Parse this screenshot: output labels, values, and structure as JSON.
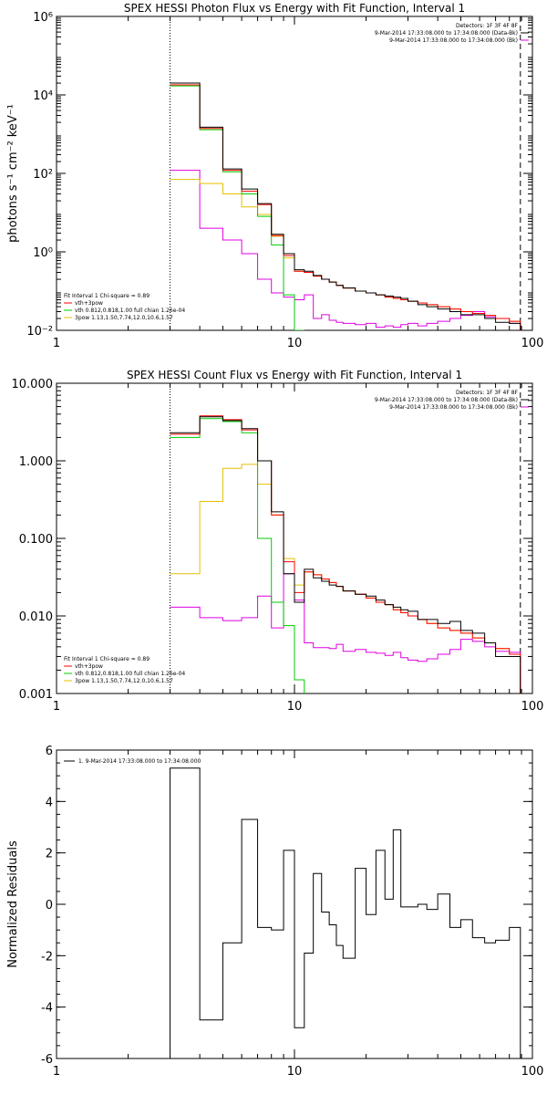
{
  "chart_data": [
    {
      "type": "line",
      "title": "SPEX HESSI Photon Flux vs Energy with Fit Function, Interval 1",
      "ylabel": "photons s⁻¹ cm⁻² keV⁻¹",
      "xscale": "log",
      "yscale": "log",
      "xlim": [
        1,
        100
      ],
      "ylim": [
        0.01,
        1000000
      ],
      "xticks": [
        {
          "v": 1,
          "label": "1"
        },
        {
          "v": 10,
          "label": "10"
        },
        {
          "v": 100,
          "label": "100"
        }
      ],
      "yticks": [
        {
          "v": 0.01,
          "label": "10⁻²"
        },
        {
          "v": 1,
          "label": "10⁰"
        },
        {
          "v": 100,
          "label": "10²"
        },
        {
          "v": 10000,
          "label": "10⁴"
        },
        {
          "v": 1000000,
          "label": "10⁶"
        }
      ],
      "vlines": [
        {
          "x": 3,
          "style": "dotted"
        },
        {
          "x": 89,
          "style": "dashed"
        }
      ],
      "legend_tr": [
        "Detectors: 1F 3F 4F 8F",
        "9-Mar-2014 17:33:08.000 to 17:34:08.000 (Data-Bk)",
        "9-Mar-2014 17:33:08.000 to 17:34:08.000 (Bk)"
      ],
      "legend_bl": {
        "title": "Fit Interval 1   Chi-square = 0.89",
        "entries": [
          "vth+3pow",
          "vth 0.812,0.818,1.00  full chian 1.26e-04",
          "3pow 1.13,1.50,7.74,12.0,10.6,1.57"
        ]
      },
      "edges": [
        3,
        4,
        5,
        6,
        7,
        8,
        9,
        10,
        11,
        12,
        13,
        14,
        15,
        16,
        18,
        20,
        22,
        24,
        26,
        28,
        30,
        33,
        36,
        40,
        45,
        50,
        56,
        63,
        70,
        80,
        89
      ],
      "series": [
        {
          "name": "Data-Bk",
          "color": "#000000",
          "values": [
            20000,
            1500,
            130,
            40,
            17,
            2.8,
            0.9,
            0.35,
            0.32,
            0.25,
            0.2,
            0.17,
            0.14,
            0.12,
            0.1,
            0.09,
            0.08,
            0.075,
            0.07,
            0.065,
            0.055,
            0.045,
            0.04,
            0.035,
            0.03,
            0.025,
            0.025,
            0.02,
            0.016,
            0.015
          ]
        },
        {
          "name": "vth+3pow",
          "color": "#ff0000",
          "values": [
            18000,
            1400,
            120,
            35,
            16,
            2.6,
            0.8,
            0.32,
            0.3,
            0.24,
            0.2,
            0.17,
            0.14,
            0.12,
            0.1,
            0.09,
            0.08,
            0.07,
            0.065,
            0.06,
            0.055,
            0.05,
            0.045,
            0.04,
            0.035,
            0.03,
            0.027,
            0.024,
            0.02,
            0.017
          ]
        },
        {
          "name": "vth",
          "color": "#00cc00",
          "values": [
            17000,
            1300,
            110,
            30,
            8,
            1.5,
            0.08,
            0.01
          ]
        },
        {
          "name": "3pow",
          "color": "#e6c000",
          "values": [
            70,
            55,
            30,
            14,
            9,
            2.5,
            0.7,
            0.32,
            0.3,
            0.24,
            0.2,
            0.17,
            0.14,
            0.12,
            0.1,
            0.09,
            0.08,
            0.07,
            0.065,
            0.06,
            0.055,
            0.05,
            0.045,
            0.04,
            0.035,
            0.03,
            0.027,
            0.024,
            0.02,
            0.017
          ]
        },
        {
          "name": "Bk",
          "color": "#e000e0",
          "values": [
            120,
            4,
            2,
            0.9,
            0.2,
            0.09,
            0.07,
            0.06,
            0.08,
            0.02,
            0.025,
            0.018,
            0.016,
            0.015,
            0.014,
            0.015,
            0.012,
            0.013,
            0.012,
            0.014,
            0.015,
            0.013,
            0.015,
            0.017,
            0.02,
            0.024,
            0.03,
            0.022,
            0.02,
            0.015
          ]
        }
      ]
    },
    {
      "type": "line",
      "title": "SPEX HESSI Count Flux vs Energy with Fit Function, Interval 1",
      "ylabel": "",
      "xscale": "log",
      "yscale": "log",
      "xlim": [
        1,
        100
      ],
      "ylim": [
        0.001,
        10
      ],
      "xticks": [
        {
          "v": 1,
          "label": "1"
        },
        {
          "v": 10,
          "label": "10"
        },
        {
          "v": 100,
          "label": "100"
        }
      ],
      "yticks": [
        {
          "v": 0.001,
          "label": "0.001"
        },
        {
          "v": 0.01,
          "label": "0.010"
        },
        {
          "v": 0.1,
          "label": "0.100"
        },
        {
          "v": 1,
          "label": "1.000"
        },
        {
          "v": 10,
          "label": "10.000"
        }
      ],
      "vlines": [
        {
          "x": 3,
          "style": "dotted"
        },
        {
          "x": 89,
          "style": "dashed"
        }
      ],
      "legend_tr": [
        "Detectors: 1F 3F 4F 8F",
        "9-Mar-2014 17:33:08.000 to 17:34:08.000 (Data-Bk)",
        "9-Mar-2014 17:33:08.000 to 17:34:08.000 (Bk)"
      ],
      "legend_bl": {
        "title": "Fit Interval 1   Chi-square = 0.89",
        "entries": [
          "vth+3pow",
          "vth 0.812,0.818,1.00  full chian 1.26e-04",
          "3pow 1.13,1.50,7.74,12.0,10.6,1.57"
        ]
      },
      "edges": [
        3,
        4,
        5,
        6,
        7,
        8,
        9,
        10,
        11,
        12,
        13,
        14,
        15,
        16,
        18,
        20,
        22,
        24,
        26,
        28,
        30,
        33,
        36,
        40,
        45,
        50,
        56,
        63,
        70,
        80,
        89
      ],
      "series": [
        {
          "name": "Data-Bk",
          "color": "#000000",
          "values": [
            2.3,
            3.7,
            3.3,
            2.6,
            1.0,
            0.22,
            0.035,
            0.015,
            0.04,
            0.031,
            0.028,
            0.025,
            0.024,
            0.021,
            0.019,
            0.018,
            0.016,
            0.014,
            0.013,
            0.012,
            0.0115,
            0.009,
            0.009,
            0.008,
            0.0085,
            0.0065,
            0.006,
            0.0045,
            0.003,
            0.003
          ]
        },
        {
          "name": "vth+3pow",
          "color": "#ff0000",
          "values": [
            2.2,
            3.8,
            3.4,
            2.5,
            1.0,
            0.2,
            0.05,
            0.02,
            0.037,
            0.034,
            0.03,
            0.027,
            0.024,
            0.021,
            0.019,
            0.017,
            0.015,
            0.014,
            0.012,
            0.011,
            0.01,
            0.009,
            0.008,
            0.007,
            0.0065,
            0.006,
            0.0052,
            0.0045,
            0.0038,
            0.0032
          ]
        },
        {
          "name": "vth",
          "color": "#00cc00",
          "values": [
            2.0,
            3.5,
            3.2,
            2.3,
            0.1,
            0.015,
            0.0075,
            0.0015
          ]
        },
        {
          "name": "3pow",
          "color": "#e6c000",
          "values": [
            0.035,
            0.3,
            0.8,
            0.9,
            0.5,
            0.2,
            0.055,
            0.025,
            0.037,
            0.034,
            0.03,
            0.027,
            0.024,
            0.021,
            0.019,
            0.017,
            0.015,
            0.014,
            0.012,
            0.011,
            0.01,
            0.009,
            0.008,
            0.007,
            0.0065,
            0.006,
            0.0052,
            0.0045,
            0.0038,
            0.0032
          ]
        },
        {
          "name": "Bk",
          "color": "#e000e0",
          "values": [
            0.013,
            0.0095,
            0.0087,
            0.0095,
            0.018,
            0.007,
            0.035,
            0.016,
            0.0045,
            0.0039,
            0.0039,
            0.0038,
            0.0043,
            0.0035,
            0.0037,
            0.0034,
            0.0033,
            0.0031,
            0.0034,
            0.0029,
            0.0027,
            0.0026,
            0.0028,
            0.0032,
            0.0037,
            0.005,
            0.0047,
            0.004,
            0.0035,
            0.0034
          ]
        }
      ]
    },
    {
      "type": "line",
      "title": "",
      "ylabel": "Normalized Residuals",
      "xscale": "log",
      "yscale": "linear",
      "xlim": [
        1,
        100
      ],
      "ylim": [
        -6,
        6
      ],
      "xticks": [
        {
          "v": 1,
          "label": "1"
        },
        {
          "v": 10,
          "label": "10"
        },
        {
          "v": 100,
          "label": "100"
        }
      ],
      "yticks": [
        {
          "v": -6,
          "label": "-6"
        },
        {
          "v": -4,
          "label": "-4"
        },
        {
          "v": -2,
          "label": "-2"
        },
        {
          "v": 0,
          "label": "0"
        },
        {
          "v": 2,
          "label": "2"
        },
        {
          "v": 4,
          "label": "4"
        },
        {
          "v": 6,
          "label": "6"
        }
      ],
      "vlines": [],
      "legend_tl": [
        "1.  9-Mar-2014 17:33:08.000 to 17:34:08.000"
      ],
      "edges": [
        3,
        4,
        5,
        6,
        7,
        8,
        9,
        10,
        11,
        12,
        13,
        14,
        15,
        16,
        18,
        20,
        22,
        24,
        26,
        28,
        30,
        33,
        36,
        40,
        45,
        50,
        56,
        63,
        70,
        80,
        89
      ],
      "series": [
        {
          "name": "1.  9-Mar-2014 17:33:08.000 to 17:34:08.000",
          "color": "#000000",
          "values": [
            5.3,
            -4.5,
            -1.5,
            3.3,
            -0.9,
            -1.0,
            2.1,
            -4.8,
            -1.9,
            1.2,
            -0.3,
            -0.8,
            -1.6,
            -2.1,
            1.4,
            -0.4,
            2.1,
            0.2,
            2.9,
            -0.1,
            -0.1,
            0.0,
            -0.2,
            0.4,
            -0.9,
            -0.6,
            -1.3,
            -1.5,
            -1.4,
            -0.9
          ]
        }
      ]
    }
  ]
}
